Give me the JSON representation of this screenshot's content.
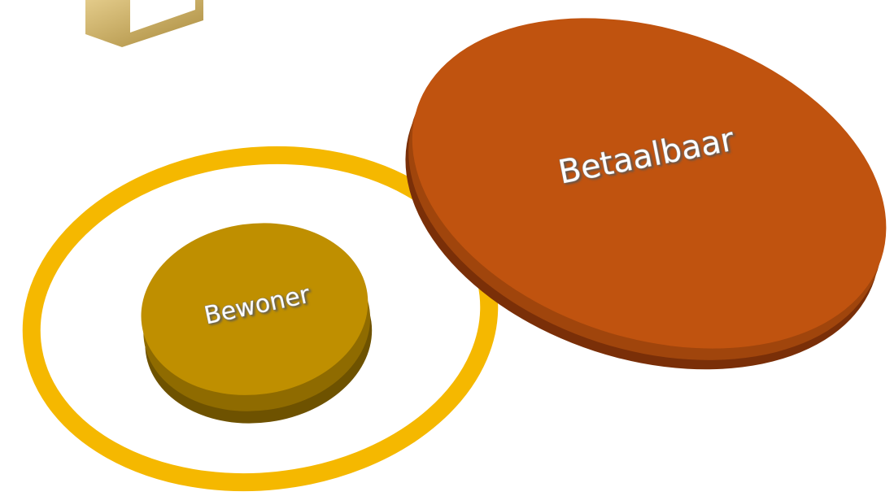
{
  "nodes": [
    {
      "label": "Betaalbaar"
    },
    {
      "label": "Bewoner"
    }
  ]
}
